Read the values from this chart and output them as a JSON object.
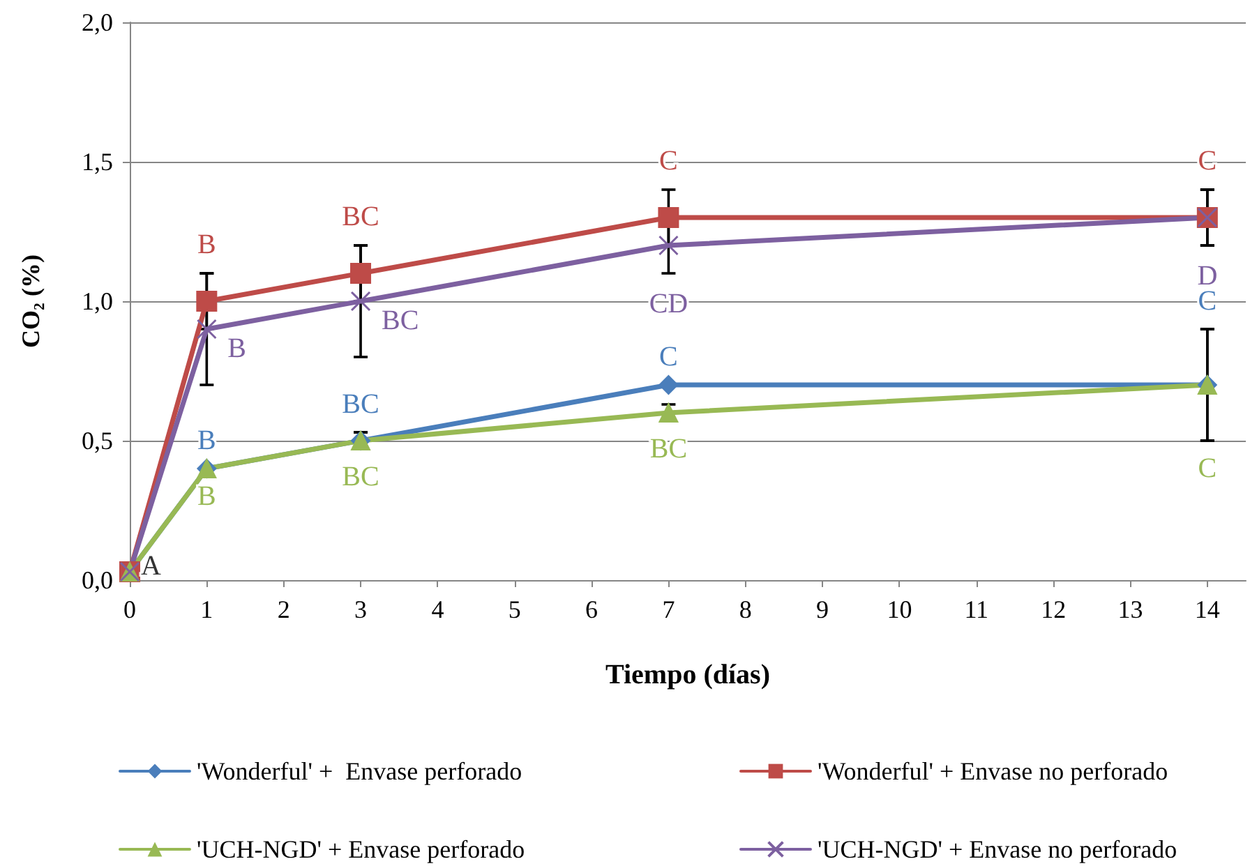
{
  "chart_data": {
    "type": "line",
    "xlabel": "Tiempo (días)",
    "ylabel": "CO₂ (%)",
    "xlim": [
      0,
      14.5
    ],
    "xticks": [
      0,
      1,
      2,
      3,
      4,
      5,
      6,
      7,
      8,
      9,
      10,
      11,
      12,
      13,
      14
    ],
    "ylim": [
      0,
      2
    ],
    "yticks": [
      {
        "value": 0,
        "label": "0,0"
      },
      {
        "value": 0.5,
        "label": "0,5"
      },
      {
        "value": 1,
        "label": "1,0"
      },
      {
        "value": 1.5,
        "label": "1,5"
      },
      {
        "value": 2,
        "label": "2,0"
      }
    ],
    "grid": "y",
    "legend": "bottom",
    "line_style": "solid",
    "x": [
      0,
      1,
      3,
      7,
      14
    ],
    "series": [
      {
        "name": "'Wonderful' +  Envase perforado",
        "color": "#4a7ebb",
        "marker": "diamond",
        "values": [
          0.03,
          0.4,
          0.5,
          0.7,
          0.7
        ],
        "errors": [
          null,
          null,
          0.03,
          null,
          0.2
        ],
        "value_labels": [
          null,
          "B",
          "BC",
          "C",
          "C"
        ]
      },
      {
        "name": "'Wonderful' + Envase no perforado",
        "color": "#be4b48",
        "marker": "square",
        "values": [
          0.03,
          1.0,
          1.1,
          1.3,
          1.3
        ],
        "errors": [
          null,
          0.1,
          0.1,
          0.1,
          0.1
        ],
        "value_labels": [
          null,
          "B",
          "BC",
          "C",
          "C"
        ]
      },
      {
        "name": "'UCH-NGD' + Envase perforado",
        "color": "#98b954",
        "marker": "triangle",
        "values": [
          0.03,
          0.4,
          0.5,
          0.6,
          0.7
        ],
        "errors": [
          null,
          null,
          0.03,
          0.03,
          0.2
        ],
        "value_labels": [
          null,
          "B",
          "BC",
          "BC",
          "C"
        ]
      },
      {
        "name": "'UCH-NGD' + Envase no perforado",
        "color": "#7d60a0",
        "marker": "cross",
        "values": [
          0.03,
          0.9,
          1.0,
          1.2,
          1.3
        ],
        "errors": [
          null,
          0.2,
          0.2,
          0.1,
          0.1
        ],
        "value_labels": [
          null,
          "B",
          "BC",
          "CD",
          "D"
        ]
      }
    ],
    "annotations": [
      {
        "text": "A",
        "x": 0,
        "y": 0.03
      }
    ]
  }
}
